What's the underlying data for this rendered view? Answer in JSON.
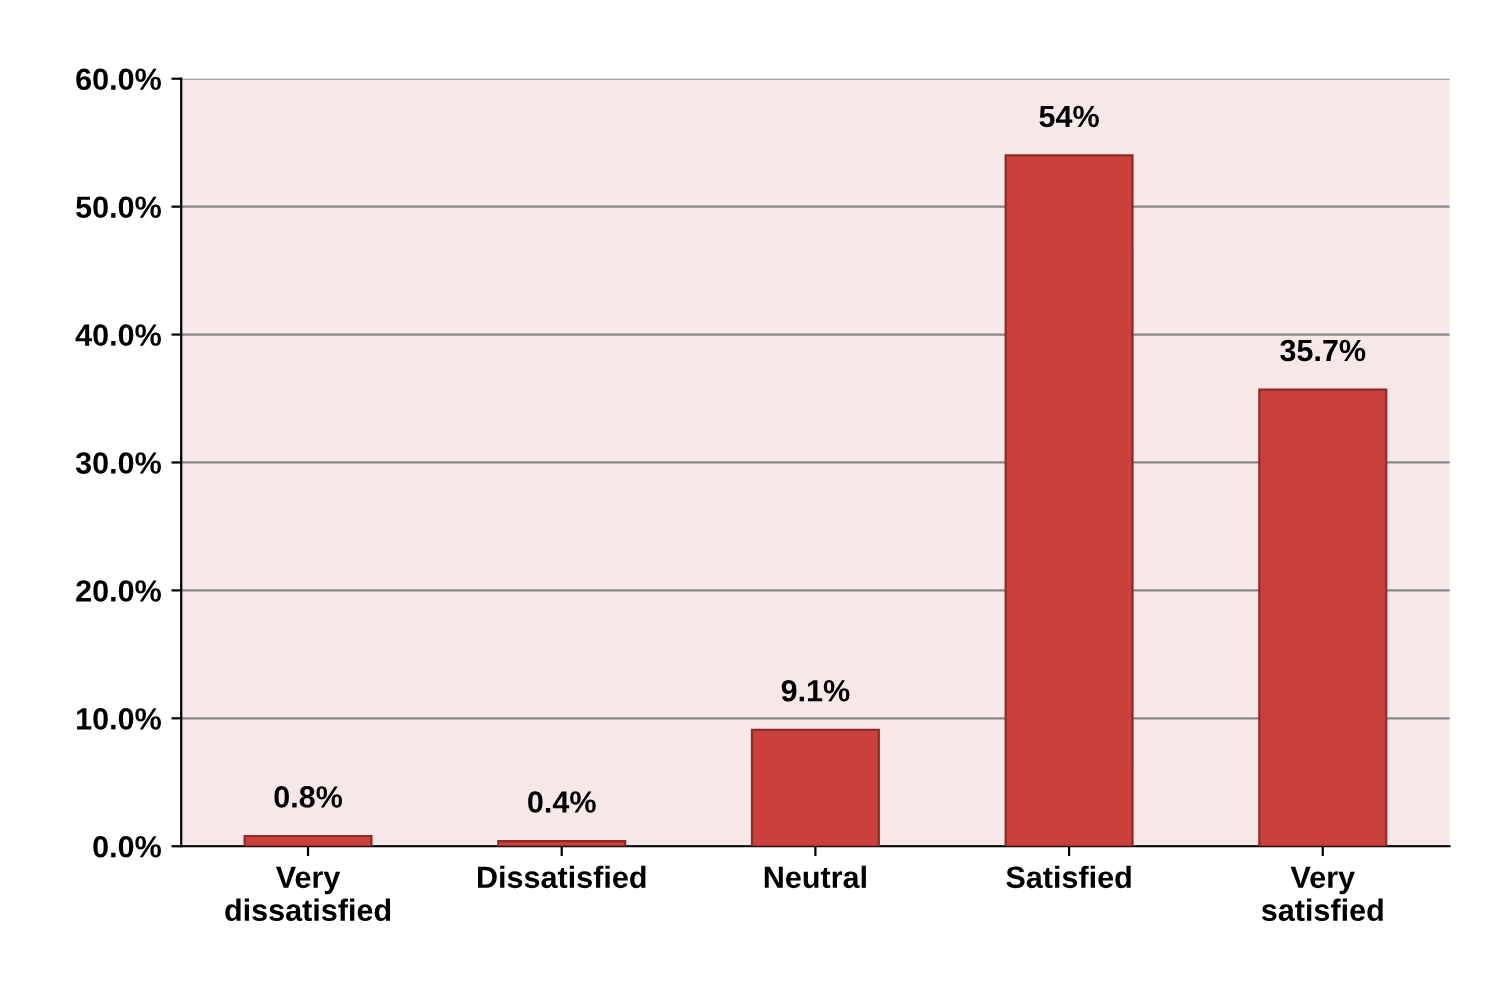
{
  "chart_data": {
    "type": "bar",
    "categories": [
      "Very\ndissatisfied",
      "Dissatisfied",
      "Neutral",
      "Satisfied",
      "Very\nsatisfied"
    ],
    "values": [
      0.8,
      0.4,
      9.1,
      54,
      35.7
    ],
    "value_labels": [
      "0.8%",
      "0.4%",
      "9.1%",
      "54%",
      "35.7%"
    ],
    "color": "#c9403c",
    "ylim": [
      0,
      60
    ],
    "yticks": [
      {
        "value": 0,
        "label": "0.0%"
      },
      {
        "value": 10,
        "label": "10.0%"
      },
      {
        "value": 20,
        "label": "20.0%"
      },
      {
        "value": 30,
        "label": "30.0%"
      },
      {
        "value": 40,
        "label": "40.0%"
      },
      {
        "value": 50,
        "label": "50.0%"
      },
      {
        "value": 60,
        "label": "60.0%"
      }
    ],
    "grid": "y"
  }
}
